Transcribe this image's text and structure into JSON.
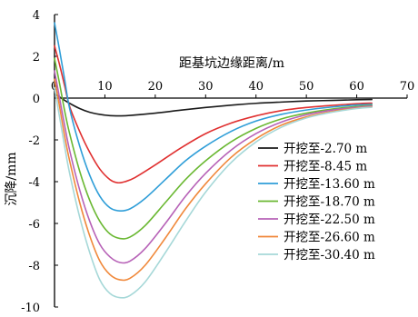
{
  "chart_data": {
    "type": "line",
    "title": "",
    "xlabel": "距基坑边缘距离/m",
    "ylabel": "沉降/mm",
    "xlim": [
      0,
      70
    ],
    "ylim": [
      -10,
      4
    ],
    "x_ticks": [
      "0",
      "10",
      "20",
      "30",
      "40",
      "50",
      "60",
      "70"
    ],
    "y_ticks": [
      "4",
      "2",
      "0",
      "-2",
      "-4",
      "-6",
      "-8",
      "-10"
    ],
    "x_tick_values": [
      0,
      10,
      20,
      30,
      40,
      50,
      60,
      70
    ],
    "y_tick_values": [
      4,
      2,
      0,
      -2,
      -4,
      -6,
      -8,
      -10
    ],
    "grid": false,
    "x_axis_position": "top",
    "legend_position": "right",
    "series": [
      {
        "name": "开挖至-2.70 m",
        "color": "#1a1a1a",
        "points": [
          [
            0,
            0.2
          ],
          [
            1,
            0.05
          ],
          [
            3,
            -0.25
          ],
          [
            5,
            -0.5
          ],
          [
            7,
            -0.68
          ],
          [
            9,
            -0.78
          ],
          [
            11,
            -0.84
          ],
          [
            13,
            -0.85
          ],
          [
            15,
            -0.83
          ],
          [
            20,
            -0.72
          ],
          [
            25,
            -0.58
          ],
          [
            30,
            -0.45
          ],
          [
            35,
            -0.34
          ],
          [
            40,
            -0.25
          ],
          [
            45,
            -0.19
          ],
          [
            50,
            -0.14
          ],
          [
            55,
            -0.11
          ],
          [
            60,
            -0.08
          ],
          [
            63,
            -0.07
          ]
        ]
      },
      {
        "name": "开挖至-8.45 m",
        "color": "#e03030",
        "points": [
          [
            0,
            2.5
          ],
          [
            1,
            1.6
          ],
          [
            2,
            0.6
          ],
          [
            3,
            -0.4
          ],
          [
            5,
            -1.6
          ],
          [
            7,
            -2.6
          ],
          [
            9,
            -3.4
          ],
          [
            11,
            -3.9
          ],
          [
            12.5,
            -4.05
          ],
          [
            14,
            -4.0
          ],
          [
            16,
            -3.8
          ],
          [
            20,
            -3.2
          ],
          [
            25,
            -2.4
          ],
          [
            30,
            -1.7
          ],
          [
            35,
            -1.2
          ],
          [
            40,
            -0.85
          ],
          [
            45,
            -0.6
          ],
          [
            50,
            -0.45
          ],
          [
            55,
            -0.35
          ],
          [
            60,
            -0.27
          ],
          [
            63,
            -0.24
          ]
        ]
      },
      {
        "name": "开挖至-13.60 m",
        "color": "#2f9ed8",
        "points": [
          [
            0,
            3.6
          ],
          [
            1,
            2.3
          ],
          [
            2,
            0.9
          ],
          [
            3,
            -0.5
          ],
          [
            5,
            -2.3
          ],
          [
            7,
            -3.7
          ],
          [
            9,
            -4.7
          ],
          [
            11,
            -5.25
          ],
          [
            13,
            -5.4
          ],
          [
            15,
            -5.3
          ],
          [
            18,
            -4.8
          ],
          [
            22,
            -3.9
          ],
          [
            26,
            -3.0
          ],
          [
            30,
            -2.3
          ],
          [
            35,
            -1.6
          ],
          [
            40,
            -1.1
          ],
          [
            45,
            -0.78
          ],
          [
            50,
            -0.57
          ],
          [
            55,
            -0.43
          ],
          [
            60,
            -0.33
          ],
          [
            63,
            -0.3
          ]
        ]
      },
      {
        "name": "开挖至-18.70 m",
        "color": "#6ab832",
        "points": [
          [
            0,
            1.9
          ],
          [
            1,
            0.7
          ],
          [
            2,
            -0.6
          ],
          [
            3,
            -1.7
          ],
          [
            5,
            -3.5
          ],
          [
            7,
            -4.9
          ],
          [
            9,
            -5.9
          ],
          [
            11,
            -6.5
          ],
          [
            13,
            -6.72
          ],
          [
            15,
            -6.65
          ],
          [
            18,
            -6.1
          ],
          [
            22,
            -5.0
          ],
          [
            26,
            -3.9
          ],
          [
            30,
            -3.0
          ],
          [
            35,
            -2.1
          ],
          [
            40,
            -1.45
          ],
          [
            45,
            -1.0
          ],
          [
            50,
            -0.72
          ],
          [
            55,
            -0.53
          ],
          [
            60,
            -0.4
          ],
          [
            63,
            -0.35
          ]
        ]
      },
      {
        "name": "开挖至-22.50 m",
        "color": "#b762b7",
        "points": [
          [
            0,
            1.3
          ],
          [
            1,
            0.0
          ],
          [
            2,
            -1.3
          ],
          [
            3,
            -2.5
          ],
          [
            5,
            -4.4
          ],
          [
            7,
            -5.9
          ],
          [
            9,
            -7.0
          ],
          [
            11,
            -7.6
          ],
          [
            13,
            -7.87
          ],
          [
            15,
            -7.8
          ],
          [
            18,
            -7.2
          ],
          [
            22,
            -6.0
          ],
          [
            26,
            -4.7
          ],
          [
            30,
            -3.6
          ],
          [
            35,
            -2.5
          ],
          [
            40,
            -1.7
          ],
          [
            45,
            -1.15
          ],
          [
            50,
            -0.8
          ],
          [
            55,
            -0.58
          ],
          [
            60,
            -0.44
          ],
          [
            63,
            -0.38
          ]
        ]
      },
      {
        "name": "开挖至-26.60 m",
        "color": "#f0883a",
        "points": [
          [
            0,
            0.9
          ],
          [
            1,
            -0.4
          ],
          [
            2,
            -1.8
          ],
          [
            3,
            -3.0
          ],
          [
            5,
            -5.0
          ],
          [
            7,
            -6.6
          ],
          [
            9,
            -7.8
          ],
          [
            11,
            -8.45
          ],
          [
            13,
            -8.7
          ],
          [
            15,
            -8.62
          ],
          [
            18,
            -8.0
          ],
          [
            22,
            -6.7
          ],
          [
            26,
            -5.3
          ],
          [
            30,
            -4.1
          ],
          [
            35,
            -2.85
          ],
          [
            40,
            -1.95
          ],
          [
            45,
            -1.3
          ],
          [
            50,
            -0.9
          ],
          [
            55,
            -0.65
          ],
          [
            60,
            -0.48
          ],
          [
            63,
            -0.42
          ]
        ]
      },
      {
        "name": "开挖至-30.40 m",
        "color": "#a6d8d8",
        "points": [
          [
            0,
            0.5
          ],
          [
            1,
            -0.9
          ],
          [
            2,
            -2.3
          ],
          [
            3,
            -3.6
          ],
          [
            5,
            -5.7
          ],
          [
            7,
            -7.4
          ],
          [
            9,
            -8.7
          ],
          [
            11,
            -9.35
          ],
          [
            13,
            -9.55
          ],
          [
            15,
            -9.45
          ],
          [
            18,
            -8.8
          ],
          [
            22,
            -7.4
          ],
          [
            26,
            -5.9
          ],
          [
            30,
            -4.5
          ],
          [
            35,
            -3.1
          ],
          [
            40,
            -2.1
          ],
          [
            45,
            -1.4
          ],
          [
            50,
            -0.95
          ],
          [
            55,
            -0.68
          ],
          [
            60,
            -0.5
          ],
          [
            63,
            -0.44
          ]
        ]
      }
    ]
  }
}
